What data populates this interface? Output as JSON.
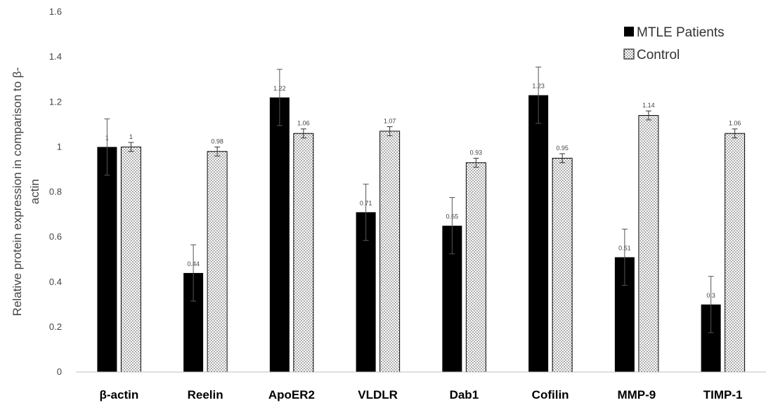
{
  "chart_data": {
    "type": "bar",
    "categories": [
      "β-actin",
      "Reelin",
      "ApoER2",
      "VLDLR",
      "Dab1",
      "Cofilin",
      "MMP-9",
      "TIMP-1"
    ],
    "series": [
      {
        "name": "MTLE Patients",
        "values": [
          1,
          0.44,
          1.22,
          0.71,
          0.65,
          1.23,
          0.51,
          0.3
        ],
        "error": [
          0.125,
          0.125,
          0.125,
          0.125,
          0.125,
          0.125,
          0.125,
          0.125
        ],
        "color": "#000000",
        "fill": "solid"
      },
      {
        "name": "Control",
        "values": [
          1,
          0.98,
          1.06,
          1.07,
          0.93,
          0.95,
          1.14,
          1.06
        ],
        "error": [
          0.02,
          0.02,
          0.02,
          0.02,
          0.02,
          0.02,
          0.02,
          0.02
        ],
        "color": "#ffffff",
        "fill": "dotted"
      }
    ],
    "data_labels": [
      [
        "1",
        "0.44",
        "1.22",
        "0.71",
        "0.65",
        "1.23",
        "0.51",
        "0.3"
      ],
      [
        "1",
        "0.98",
        "1.06",
        "1.07",
        "0.93",
        "0.95",
        "1.14",
        "1.06"
      ]
    ],
    "title": "",
    "xlabel": "",
    "ylabel": "Relative protein expression in comparison to β-actin",
    "ylabel_lines": [
      "Relative protein expression in comparison to β-",
      "actin"
    ],
    "ylim": [
      0,
      1.6
    ],
    "yticks": [
      0,
      0.2,
      0.4,
      0.6,
      0.8,
      1,
      1.2,
      1.4,
      1.6
    ],
    "ytick_labels": [
      "0",
      "0.2",
      "0.4",
      "0.6",
      "0.8",
      "1",
      "1.2",
      "1.4",
      "1.6"
    ],
    "grid": false,
    "legend_position": "top-right"
  }
}
